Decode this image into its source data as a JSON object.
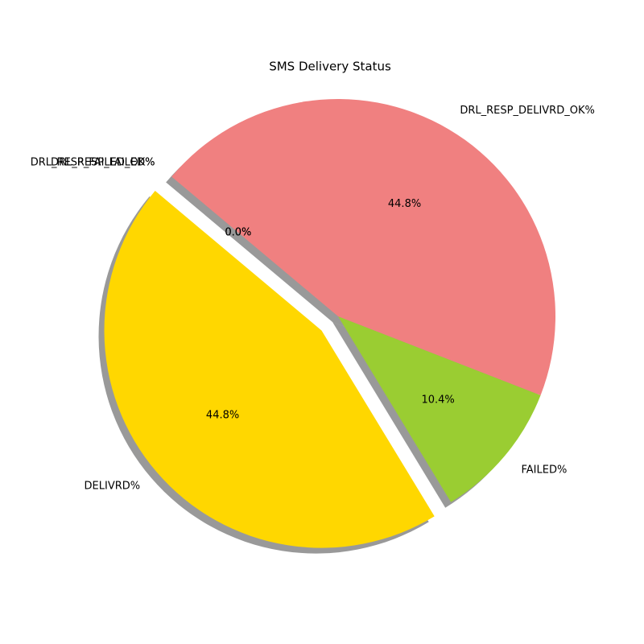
{
  "chart_data": {
    "type": "pie",
    "title": "SMS Delivery Status",
    "categories": [
      "DELIVRD%",
      "FAILED%",
      "DRL_RESP_DELIVRD_OK%",
      "DRL_RESP_FAILED%",
      "DRL_RESP_FAILED_OK%"
    ],
    "values": [
      44.8,
      10.4,
      44.8,
      0,
      0
    ],
    "value_labels": [
      "44.8%",
      "10.4%",
      "44.8%",
      "0.0%",
      "0.0%"
    ],
    "colors": [
      "#ffd700",
      "#9acd32",
      "#f08080",
      "#87cefa",
      "#ffa500"
    ],
    "explode": [
      0.1,
      0,
      0,
      0,
      0
    ],
    "startangle": 140,
    "shadow": true
  }
}
